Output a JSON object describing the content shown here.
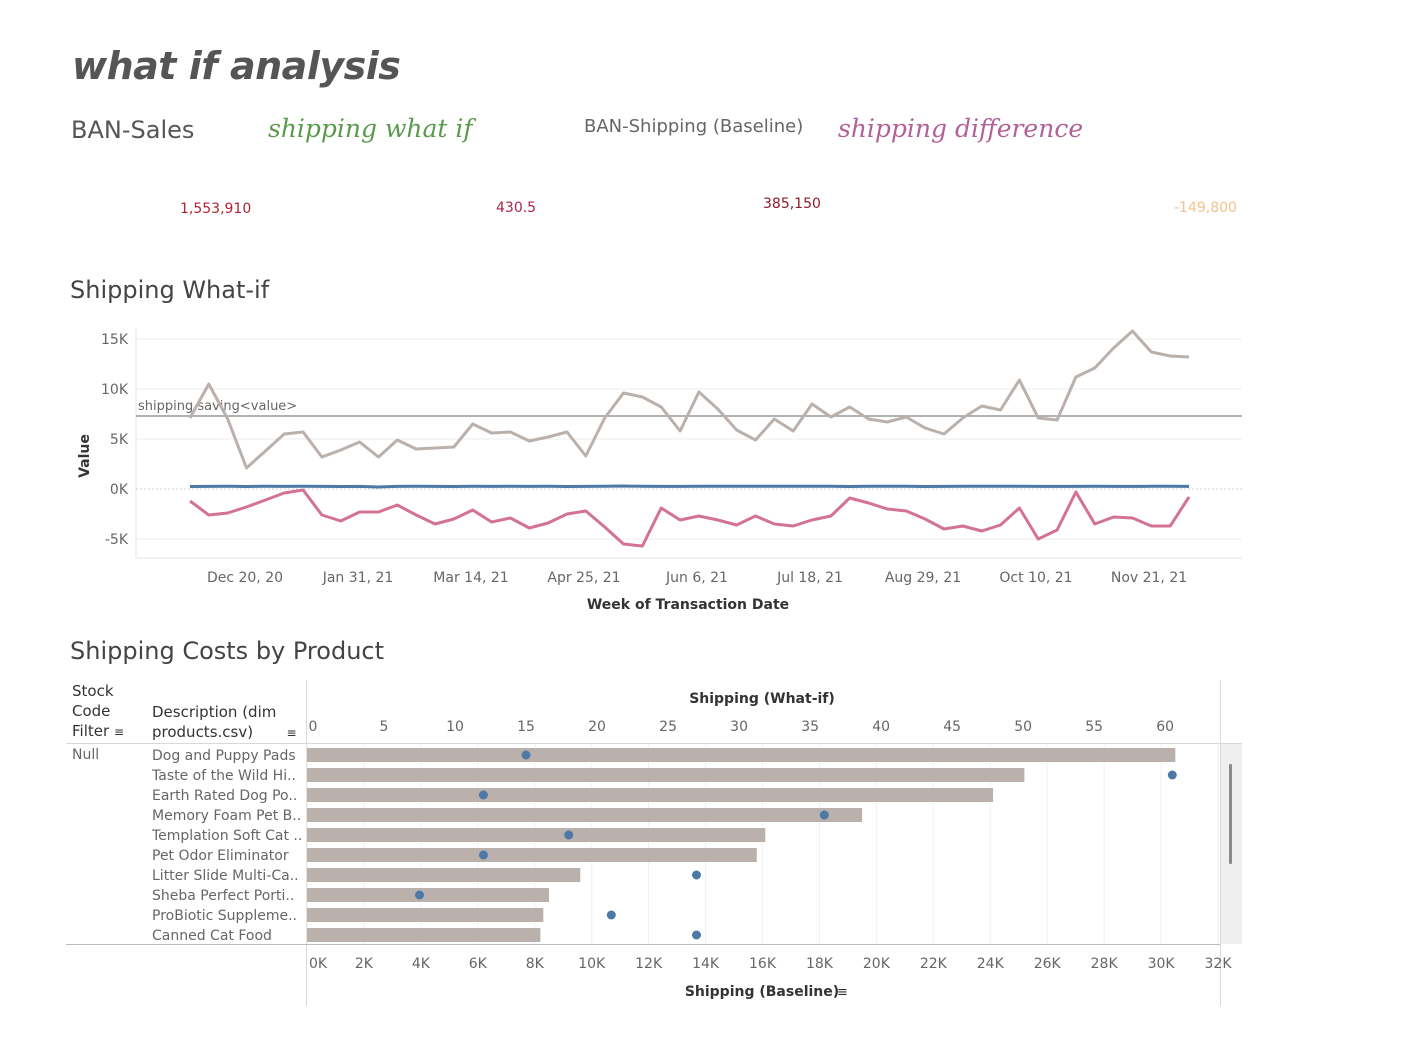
{
  "dashboard": {
    "title": "what if analysis"
  },
  "bans": [
    {
      "label": "BAN-Sales",
      "value": "1,553,910",
      "label_color": "#555555",
      "value_color": "#b22234"
    },
    {
      "label": "shipping what if",
      "value": "430.5",
      "label_color": "#5a9a4c",
      "value_color": "#a8264a"
    },
    {
      "label": "BAN-Shipping (Baseline)",
      "value": "385,150",
      "label_color": "#666666",
      "value_color": "#8c1c2c"
    },
    {
      "label": "shipping difference",
      "value": "-149,800",
      "label_color": "#b0619a",
      "value_color": "#f2c28e"
    }
  ],
  "line_chart": {
    "title": "Shipping What-if",
    "reference_line_label": "shipping saving<value>",
    "colors": {
      "grey": "#bab0ac",
      "blue": "#4e79a7",
      "pink": "#d37295",
      "ref": "#999999"
    }
  },
  "bar_chart": {
    "title": "Shipping Costs by Product",
    "col_headers": {
      "stock_code": "Stock Code Filter",
      "stock_code_lines": [
        "Stock",
        "Code",
        "Filter"
      ],
      "description_lines": [
        "Description (dim",
        "products.csv)"
      ]
    },
    "stock_code_value": "Null",
    "top_axis_title": "Shipping (What-if)",
    "bottom_axis_title": "Shipping (Baseline)",
    "colors": {
      "bar": "#bab0ac",
      "dot": "#4e79a7"
    }
  },
  "chart_data": [
    {
      "type": "line",
      "title": "Shipping What-if",
      "xlabel": "Week of Transaction Date",
      "ylabel": "Value",
      "ylim": [
        -7000,
        16500
      ],
      "yticks": [
        15000,
        10000,
        5000,
        0,
        -5000
      ],
      "ytick_labels": [
        "15K",
        "10K",
        "5K",
        "0K",
        "-5K"
      ],
      "xtick_labels": [
        "Dec 20, 20",
        "Jan 31, 21",
        "Mar 14, 21",
        "Apr 25, 21",
        "Jun 6, 21",
        "Jul 18, 21",
        "Aug 29, 21",
        "Oct 10, 21",
        "Nov 21, 21"
      ],
      "reference_line": {
        "label": "shipping saving<value>",
        "value": 7300
      },
      "grid": true,
      "series": [
        {
          "values": [
            7100,
            10500,
            7000,
            2100,
            3800,
            5500,
            5700,
            3200,
            3900,
            4700,
            3200,
            4900,
            4000,
            4100,
            4200,
            6500,
            5600,
            5700,
            4800,
            5200,
            5700,
            3300,
            7100,
            9600,
            9200,
            8200,
            5800,
            9700,
            8000,
            5900,
            4900,
            7000,
            5800,
            8500,
            7200,
            8200,
            7000,
            6700,
            7200,
            6100,
            5500,
            7100,
            8300,
            7900,
            10900,
            7100,
            6900,
            11200,
            12100,
            14100,
            15800,
            13700,
            13300,
            13200
          ]
        },
        {
          "values": [
            250,
            260,
            270,
            250,
            270,
            260,
            270,
            260,
            250,
            260,
            200,
            260,
            270,
            260,
            250,
            270,
            260,
            270,
            260,
            270,
            250,
            260,
            270,
            300,
            270,
            260,
            260,
            270,
            280,
            280,
            270,
            270,
            280,
            280,
            280,
            250,
            270,
            270,
            270,
            250,
            260,
            270,
            280,
            270,
            270,
            260,
            260,
            260,
            270,
            260,
            260,
            270,
            270,
            260
          ]
        },
        {
          "values": [
            -1200,
            -2600,
            -2400,
            -1800,
            -1100,
            -400,
            -100,
            -2600,
            -3200,
            -2300,
            -2300,
            -1600,
            -2600,
            -3500,
            -3000,
            -2100,
            -3300,
            -2900,
            -3900,
            -3400,
            -2500,
            -2200,
            -3800,
            -5500,
            -5700,
            -1900,
            -3100,
            -2700,
            -3100,
            -3600,
            -2700,
            -3500,
            -3700,
            -3100,
            -2700,
            -900,
            -1400,
            -2000,
            -2200,
            -3000,
            -4000,
            -3700,
            -4200,
            -3600,
            -1900,
            -5000,
            -4100,
            -300,
            -3500,
            -2800,
            -2900,
            -3700,
            -3700,
            -800
          ]
        }
      ]
    },
    {
      "type": "bar",
      "title": "Shipping Costs by Product",
      "categories": [
        "Dog and Puppy Pads",
        "Taste of the Wild Hi..",
        "Earth Rated Dog Po..",
        "Memory Foam Pet B..",
        "Templation Soft Cat ..",
        "Pet Odor Eliminator",
        "Litter Slide Multi-Ca..",
        "Sheba Perfect Porti..",
        "ProBiotic Suppleme..",
        "Canned Cat Food"
      ],
      "series": [
        {
          "name": "Shipping (Baseline)",
          "mark": "bar",
          "axis": "bottom",
          "values": [
            30500,
            25200,
            24100,
            19500,
            16100,
            15800,
            9600,
            8500,
            8300,
            8200
          ]
        },
        {
          "name": "Shipping (What-if)",
          "mark": "circle",
          "axis": "top",
          "values": [
            15,
            60.5,
            12,
            36,
            18,
            12,
            27,
            7.5,
            21,
            27
          ]
        }
      ],
      "bottom_axis": {
        "label": "Shipping (Baseline)",
        "range": [
          0,
          32000
        ],
        "ticks": [
          0,
          2000,
          4000,
          6000,
          8000,
          10000,
          12000,
          14000,
          16000,
          18000,
          20000,
          22000,
          24000,
          26000,
          28000,
          30000,
          32000
        ],
        "tick_labels": [
          "0K",
          "2K",
          "4K",
          "6K",
          "8K",
          "10K",
          "12K",
          "14K",
          "16K",
          "18K",
          "20K",
          "22K",
          "24K",
          "26K",
          "28K",
          "30K",
          "32K"
        ]
      },
      "top_axis": {
        "label": "Shipping (What-if)",
        "range": [
          0,
          64
        ],
        "ticks": [
          0,
          5,
          10,
          15,
          20,
          25,
          30,
          35,
          40,
          45,
          50,
          55,
          60
        ],
        "tick_labels": [
          "0",
          "5",
          "10",
          "15",
          "20",
          "25",
          "30",
          "35",
          "40",
          "45",
          "50",
          "55",
          "60"
        ]
      }
    }
  ]
}
